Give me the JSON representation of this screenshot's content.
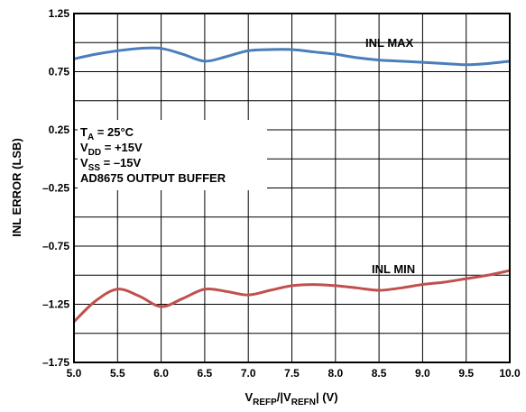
{
  "chart_data": {
    "type": "line",
    "xlabel": {
      "main": "V",
      "sub1": "REFP",
      "mid": "/|V",
      "sub2": "REFN",
      "tail": "| (V)"
    },
    "ylabel": "INL ERROR (LSB)",
    "xlim": [
      5.0,
      10.0
    ],
    "ylim": [
      -1.75,
      1.25
    ],
    "x_ticks": [
      "5.0",
      "5.5",
      "6.0",
      "6.5",
      "7.0",
      "7.5",
      "8.0",
      "8.5",
      "9.0",
      "9.5",
      "10.0"
    ],
    "y_ticks": [
      "1.25",
      "0.75",
      "0.25",
      "–0.25",
      "–0.75",
      "–1.25",
      "–1.75"
    ],
    "grid": true,
    "series": [
      {
        "name": "INL MAX",
        "color": "#4a7ebb",
        "x": [
          5.0,
          5.25,
          5.5,
          5.75,
          6.0,
          6.25,
          6.5,
          6.75,
          7.0,
          7.25,
          7.5,
          7.75,
          8.0,
          8.25,
          8.5,
          8.75,
          9.0,
          9.25,
          9.5,
          9.75,
          10.0
        ],
        "y": [
          0.86,
          0.9,
          0.93,
          0.95,
          0.95,
          0.9,
          0.84,
          0.88,
          0.93,
          0.94,
          0.94,
          0.92,
          0.9,
          0.87,
          0.85,
          0.84,
          0.83,
          0.82,
          0.81,
          0.82,
          0.84
        ]
      },
      {
        "name": "INL MIN",
        "color": "#c0504d",
        "x": [
          5.0,
          5.25,
          5.5,
          5.75,
          6.0,
          6.25,
          6.5,
          6.75,
          7.0,
          7.25,
          7.5,
          7.75,
          8.0,
          8.25,
          8.5,
          8.75,
          9.0,
          9.25,
          9.5,
          9.75,
          10.0
        ],
        "y": [
          -1.4,
          -1.22,
          -1.12,
          -1.18,
          -1.27,
          -1.2,
          -1.12,
          -1.14,
          -1.17,
          -1.13,
          -1.09,
          -1.08,
          -1.09,
          -1.11,
          -1.13,
          -1.11,
          -1.08,
          -1.06,
          -1.03,
          -1.0,
          -0.96
        ]
      }
    ],
    "annotation": {
      "lines": [
        {
          "main": "T",
          "sub": "A",
          "tail": " = 25°C"
        },
        {
          "main": "V",
          "sub": "DD",
          "tail": " = +15V"
        },
        {
          "main": "V",
          "sub": "SS",
          "tail": " = –15V"
        },
        {
          "main": "AD8675 OUTPUT BUFFER",
          "sub": "",
          "tail": ""
        }
      ]
    }
  }
}
